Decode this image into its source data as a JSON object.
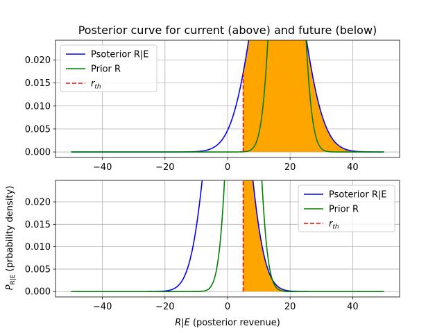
{
  "title": "Posterior curve for current (above) and future (below)",
  "colors": {
    "posterior": "#0000ff",
    "prior": "#008000",
    "threshold": "#ff0000",
    "fill": "#ffa500",
    "grid": "#b0b0b0"
  },
  "chart_data": [
    {
      "type": "line",
      "panel": "top",
      "title": "Posterior curve for current (above) and future (below)",
      "xlabel": "",
      "ylabel": "",
      "xlim": [
        -55,
        55
      ],
      "ylim": [
        -0.0012,
        0.0243
      ],
      "xticks": [
        -40,
        -20,
        0,
        20,
        40
      ],
      "xtick_labels": [
        "−40",
        "−20",
        "0",
        "20",
        "40"
      ],
      "yticks": [
        0.0,
        0.005,
        0.01,
        0.015,
        0.02
      ],
      "ytick_labels": [
        "0.000",
        "0.005",
        "0.010",
        "0.015",
        "0.020"
      ],
      "grid": true,
      "legend_position": "upper left",
      "x_range": [
        -50,
        50
      ],
      "series": [
        {
          "name": "Psoterior R|E",
          "kind": "gaussian",
          "mean": 16,
          "std": 7.2,
          "color": "#0000ff"
        },
        {
          "name": "Prior R",
          "kind": "gaussian",
          "mean": 19,
          "std": 3.47,
          "color": "#008000"
        }
      ],
      "threshold": {
        "name": "r_th",
        "label_base": "r",
        "label_sub": "th",
        "x": 5,
        "style": "dashed",
        "color": "#ff0000"
      },
      "shaded_region": {
        "from": 5,
        "to": 50,
        "under": "Psoterior R|E",
        "color": "#ffa500"
      }
    },
    {
      "type": "line",
      "panel": "bottom",
      "title": "",
      "xlabel_parts": {
        "math": "R|E",
        "rest": " (posterior revenue)"
      },
      "ylabel_parts": {
        "base": "P",
        "sub": "R|E",
        "rest": " (prbability density)"
      },
      "xlim": [
        -55,
        55
      ],
      "ylim": [
        -0.0012,
        0.0248
      ],
      "xticks": [
        -40,
        -20,
        0,
        20,
        40
      ],
      "xtick_labels": [
        "−40",
        "−20",
        "0",
        "20",
        "40"
      ],
      "yticks": [
        0.0,
        0.005,
        0.01,
        0.015,
        0.02
      ],
      "ytick_labels": [
        "0.000",
        "0.005",
        "0.010",
        "0.015",
        "0.020"
      ],
      "grid": true,
      "legend_position": "upper right",
      "x_range": [
        -50,
        50
      ],
      "series": [
        {
          "name": "Psoterior R|E",
          "kind": "gaussian",
          "mean": 0,
          "std": 5.58,
          "color": "#0000ff"
        },
        {
          "name": "Prior R",
          "kind": "gaussian",
          "mean": 5,
          "std": 3.38,
          "color": "#008000"
        }
      ],
      "threshold": {
        "name": "r_th",
        "label_base": "r",
        "label_sub": "th",
        "x": 5,
        "style": "dashed",
        "color": "#ff0000"
      },
      "shaded_region": {
        "from": 5,
        "to": 50,
        "under": "Psoterior R|E",
        "color": "#ffa500"
      }
    }
  ]
}
